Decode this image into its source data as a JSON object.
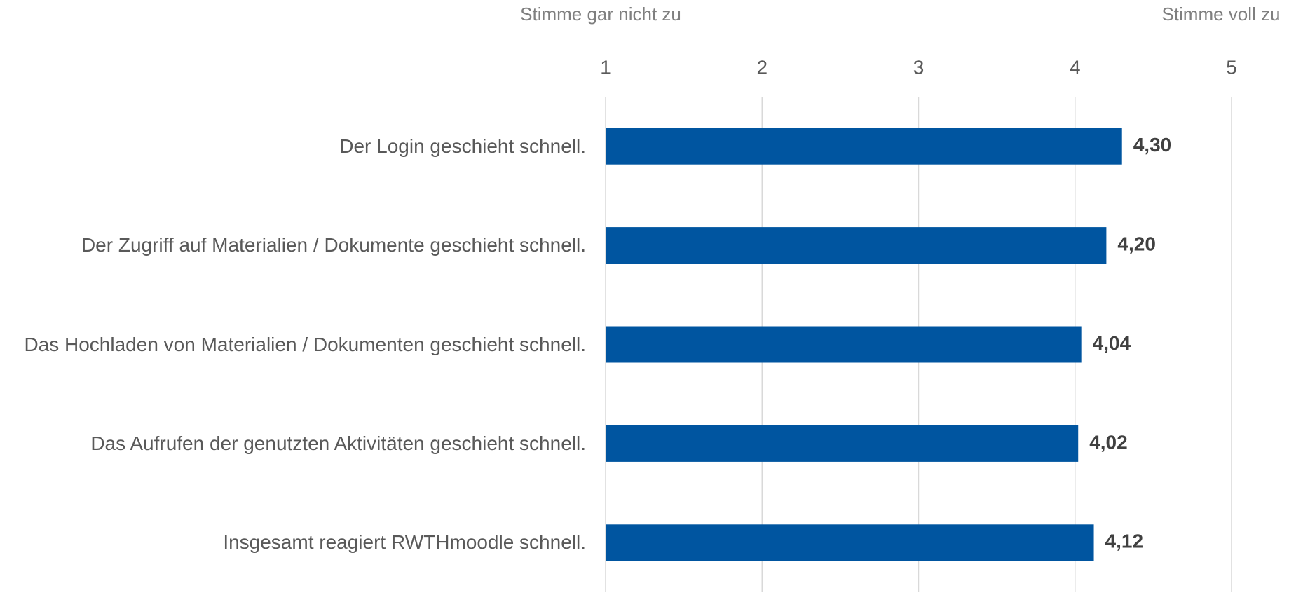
{
  "chart_data": {
    "type": "bar",
    "orientation": "horizontal",
    "axis_label_left": "Stimme gar nicht zu",
    "axis_label_right": "Stimme voll zu",
    "categories": [
      "Der Login geschieht schnell.",
      "Der Zugriff auf Materialien / Dokumente geschieht schnell.",
      "Das Hochladen von Materialien / Dokumenten geschieht schnell.",
      "Das Aufrufen der genutzten Aktivitäten geschieht schnell.",
      "Insgesamt reagiert RWTHmoodle schnell."
    ],
    "values": [
      4.3,
      4.2,
      4.04,
      4.02,
      4.12
    ],
    "value_labels": [
      "4,30",
      "4,20",
      "4,04",
      "4,02",
      "4,12"
    ],
    "color": "#0055a0",
    "xlim": [
      1,
      5
    ],
    "xticks": [
      1,
      2,
      3,
      4,
      5
    ],
    "grid": true
  }
}
